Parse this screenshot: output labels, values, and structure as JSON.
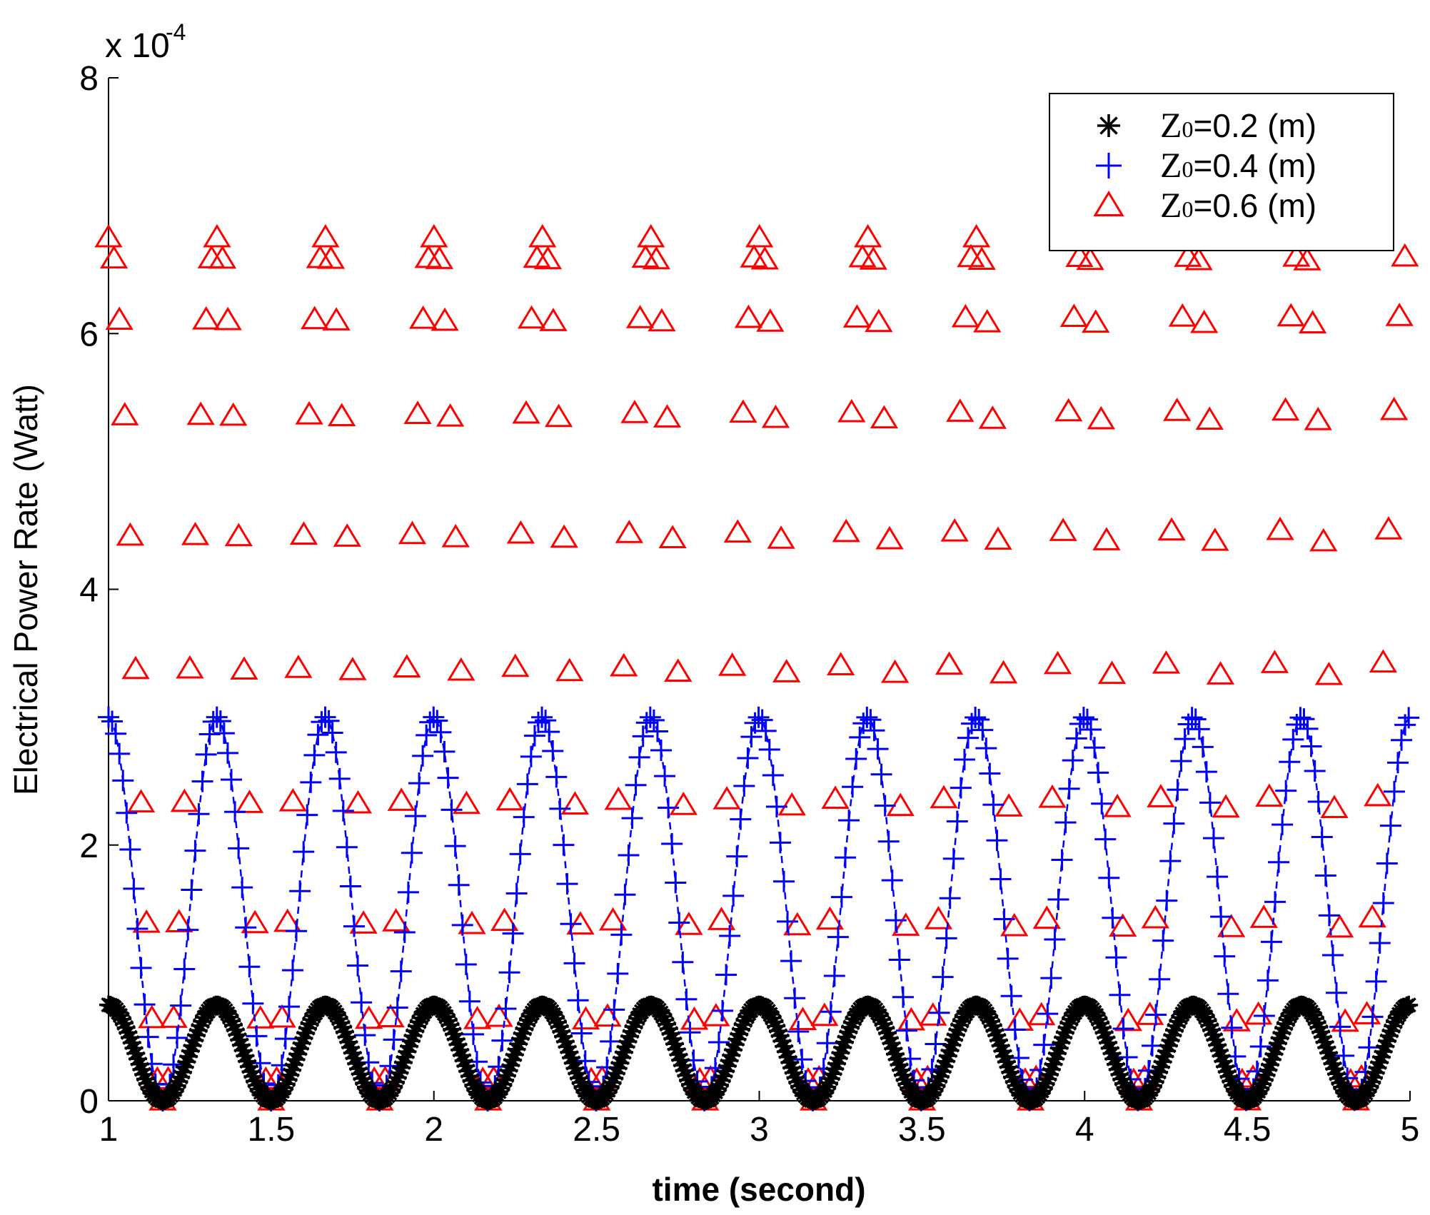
{
  "chart_data": {
    "type": "scatter",
    "xlabel": "time (second)",
    "ylabel": "Electrical Power Rate (Watt)",
    "y_exponent_label": "x 10",
    "y_exponent_power": "-4",
    "xlim": [
      1,
      5
    ],
    "ylim": [
      0,
      8
    ],
    "x_ticks": [
      1,
      1.5,
      2,
      2.5,
      3,
      3.5,
      4,
      4.5,
      5
    ],
    "x_tick_labels": [
      "1",
      "1.5",
      "2",
      "2.5",
      "3",
      "3.5",
      "4",
      "4.5",
      "5"
    ],
    "y_ticks": [
      0,
      2,
      4,
      6,
      8
    ],
    "y_tick_labels": [
      "0",
      "2",
      "4",
      "6",
      "8"
    ],
    "grid": false,
    "legend_position": "top-right",
    "period_seconds": 0.3333,
    "time_step_seconds": 0.01667,
    "series": [
      {
        "name": "Z0=0.2 (m)",
        "legend_prefix": "Z",
        "legend_subscript": "0",
        "legend_suffix": "=0.2 (m)",
        "marker": "star",
        "color": "#000000",
        "line_style": "dashed",
        "line_color": "#000000",
        "peak_value": 0.75,
        "waveform": "Peak * |cos(3*pi*(t-1))|^2"
      },
      {
        "name": "Z0=0.4 (m)",
        "legend_prefix": "Z",
        "legend_subscript": "0",
        "legend_suffix": "=0.4 (m)",
        "marker": "plus",
        "color": "#0000ff",
        "line_style": "dashed",
        "line_color": "#0000ff",
        "peak_value": 3.0,
        "waveform": "Peak * |cos(3*pi*(t-1))|^2"
      },
      {
        "name": "Z0=0.6 (m)",
        "legend_prefix": "Z",
        "legend_subscript": "0",
        "legend_suffix": "=0.6 (m)",
        "marker": "triangle",
        "color": "#ff0000",
        "line_style": "none",
        "peak_value": 6.75,
        "waveform": "Peak * |cos(3*pi*(t-1))|^2"
      }
    ]
  }
}
